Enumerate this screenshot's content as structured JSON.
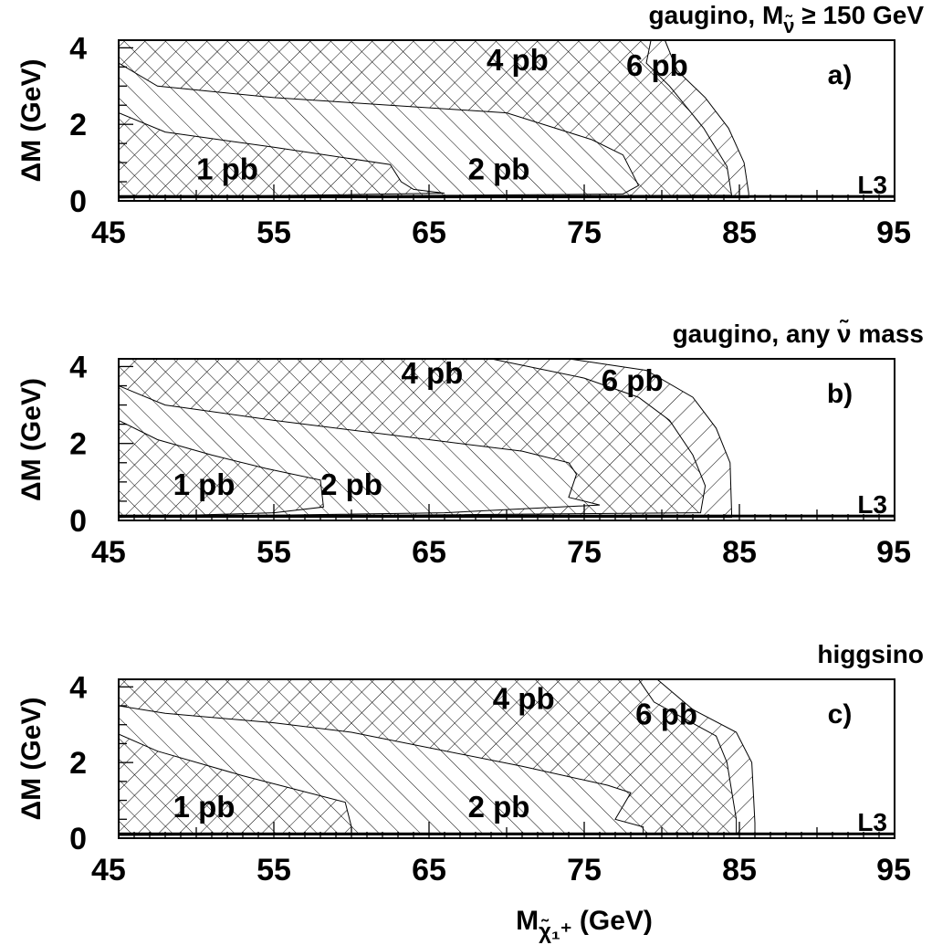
{
  "chart_data": [
    {
      "type": "area",
      "panel_label": "a)",
      "title": "gaugino, M",
      "title_sub": "ν̃",
      "title_tail": " ≥ 150 GeV",
      "experiment": "L3",
      "ylabel": "ΔM (GeV)",
      "xlim": [
        45,
        95
      ],
      "ylim": [
        0,
        4.2
      ],
      "x_ticks": [
        45,
        55,
        65,
        75,
        85,
        95
      ],
      "y_ticks": [
        0,
        2,
        4
      ],
      "regions": [
        {
          "name": "6 pb",
          "label_at": [
            79.7,
            3.55
          ],
          "polygon": [
            [
              45,
              0.3
            ],
            [
              45,
              4.2
            ],
            [
              80.2,
              4.2
            ],
            [
              81,
              3.4
            ],
            [
              82.8,
              2.7
            ],
            [
              84.3,
              1.9
            ],
            [
              85.3,
              1.0
            ],
            [
              85.6,
              0.2
            ],
            [
              85.6,
              0.08
            ],
            [
              45,
              0.08
            ]
          ]
        },
        {
          "name": "4 pb",
          "label_at": [
            70.7,
            3.7
          ],
          "polygon": [
            [
              45,
              0.3
            ],
            [
              45,
              4.2
            ],
            [
              79.3,
              4.2
            ],
            [
              79,
              3.6
            ],
            [
              80.5,
              3.0
            ],
            [
              82.7,
              1.9
            ],
            [
              84.2,
              0.9
            ],
            [
              84.5,
              0.15
            ],
            [
              45,
              0.08
            ]
          ]
        },
        {
          "name": "2 pb",
          "label_at": [
            69.5,
            0.85
          ],
          "polygon": [
            [
              45,
              0.3
            ],
            [
              45,
              3.6
            ],
            [
              47.5,
              3.0
            ],
            [
              55,
              2.7
            ],
            [
              70,
              2.3
            ],
            [
              75.5,
              1.6
            ],
            [
              77.5,
              1.2
            ],
            [
              78.5,
              0.4
            ],
            [
              77.5,
              0.18
            ],
            [
              45,
              0.08
            ]
          ]
        },
        {
          "name": "1 pb",
          "label_at": [
            52,
            0.85
          ],
          "polygon": [
            [
              45,
              0.3
            ],
            [
              45,
              2.3
            ],
            [
              48,
              1.8
            ],
            [
              55,
              1.4
            ],
            [
              62.5,
              0.95
            ],
            [
              63.2,
              0.5
            ],
            [
              64,
              0.3
            ],
            [
              66,
              0.2
            ],
            [
              45,
              0.08
            ]
          ]
        }
      ]
    },
    {
      "type": "area",
      "panel_label": "b)",
      "title": "gaugino, any ",
      "title_tail": "ν̃ mass",
      "experiment": "L3",
      "ylabel": "ΔM (GeV)",
      "xlim": [
        45,
        95
      ],
      "ylim": [
        0,
        4.2
      ],
      "x_ticks": [
        45,
        55,
        65,
        75,
        85,
        95
      ],
      "y_ticks": [
        0,
        2,
        4
      ],
      "regions": [
        {
          "name": "6 pb",
          "label_at": [
            78.1,
            3.65
          ],
          "polygon": [
            [
              45,
              0.3
            ],
            [
              45,
              4.2
            ],
            [
              74,
              4.2
            ],
            [
              79,
              3.9
            ],
            [
              82,
              3.2
            ],
            [
              83.5,
              2.4
            ],
            [
              84.4,
              1.5
            ],
            [
              84.5,
              0.2
            ],
            [
              84.5,
              0.08
            ],
            [
              45,
              0.08
            ]
          ]
        },
        {
          "name": "4 pb",
          "label_at": [
            65.2,
            3.85
          ],
          "polygon": [
            [
              45,
              0.3
            ],
            [
              45,
              4.2
            ],
            [
              69,
              4.2
            ],
            [
              75,
              3.7
            ],
            [
              78.5,
              3.2
            ],
            [
              80.5,
              2.6
            ],
            [
              82,
              1.7
            ],
            [
              82.8,
              0.9
            ],
            [
              82.5,
              0.2
            ],
            [
              45,
              0.08
            ]
          ]
        },
        {
          "name": "2 pb",
          "label_at": [
            60,
            0.95
          ],
          "polygon": [
            [
              45,
              0.3
            ],
            [
              45,
              3.5
            ],
            [
              48,
              3.0
            ],
            [
              55,
              2.6
            ],
            [
              65,
              2.1
            ],
            [
              71,
              1.8
            ],
            [
              74,
              1.5
            ],
            [
              74.5,
              1.2
            ],
            [
              74,
              0.6
            ],
            [
              76,
              0.4
            ],
            [
              66,
              0.2
            ],
            [
              45,
              0.08
            ]
          ]
        },
        {
          "name": "1 pb",
          "label_at": [
            50.5,
            0.95
          ],
          "polygon": [
            [
              45,
              0.3
            ],
            [
              45,
              2.6
            ],
            [
              47.5,
              2.1
            ],
            [
              51,
              1.7
            ],
            [
              54.5,
              1.35
            ],
            [
              58,
              1.05
            ],
            [
              58.2,
              0.35
            ],
            [
              55,
              0.2
            ],
            [
              45,
              0.08
            ]
          ]
        }
      ]
    },
    {
      "type": "area",
      "panel_label": "c)",
      "title": "higgsino",
      "experiment": "L3",
      "xlabel": "M",
      "xlabel_sub": "χ̃₁⁺",
      "xlabel_tail": " (GeV)",
      "ylabel": "ΔM (GeV)",
      "xlim": [
        45,
        95
      ],
      "ylim": [
        0,
        4.2
      ],
      "x_ticks": [
        45,
        55,
        65,
        75,
        85,
        95
      ],
      "y_ticks": [
        0,
        2,
        4
      ],
      "regions": [
        {
          "name": "6 pb",
          "label_at": [
            80.3,
            3.3
          ],
          "polygon": [
            [
              45,
              0.3
            ],
            [
              45,
              4.2
            ],
            [
              79.7,
              4.2
            ],
            [
              82,
              3.4
            ],
            [
              84.8,
              2.8
            ],
            [
              85.8,
              2.0
            ],
            [
              86,
              0.4
            ],
            [
              86,
              0.1
            ],
            [
              45,
              0.08
            ]
          ]
        },
        {
          "name": "4 pb",
          "label_at": [
            71.1,
            3.7
          ],
          "polygon": [
            [
              45,
              0.3
            ],
            [
              45,
              4.2
            ],
            [
              78.5,
              4.2
            ],
            [
              79.5,
              3.6
            ],
            [
              83.5,
              2.7
            ],
            [
              84.2,
              2.0
            ],
            [
              84.8,
              0.5
            ],
            [
              84.8,
              0.1
            ],
            [
              45,
              0.08
            ]
          ]
        },
        {
          "name": "2 pb",
          "label_at": [
            69.5,
            0.85
          ],
          "polygon": [
            [
              45,
              0.3
            ],
            [
              45,
              3.5
            ],
            [
              48,
              3.3
            ],
            [
              55,
              3.05
            ],
            [
              60,
              2.8
            ],
            [
              71,
              1.9
            ],
            [
              76.5,
              1.4
            ],
            [
              78,
              1.2
            ],
            [
              77,
              0.5
            ],
            [
              78.8,
              0.3
            ],
            [
              78.8,
              0.1
            ],
            [
              45,
              0.08
            ]
          ]
        },
        {
          "name": "1 pb",
          "label_at": [
            50.5,
            0.85
          ],
          "polygon": [
            [
              45,
              0.3
            ],
            [
              45,
              2.75
            ],
            [
              47.5,
              2.3
            ],
            [
              53,
              1.65
            ],
            [
              59.6,
              0.95
            ],
            [
              60,
              0.3
            ],
            [
              60,
              0.12
            ],
            [
              45,
              0.08
            ]
          ]
        }
      ]
    }
  ]
}
